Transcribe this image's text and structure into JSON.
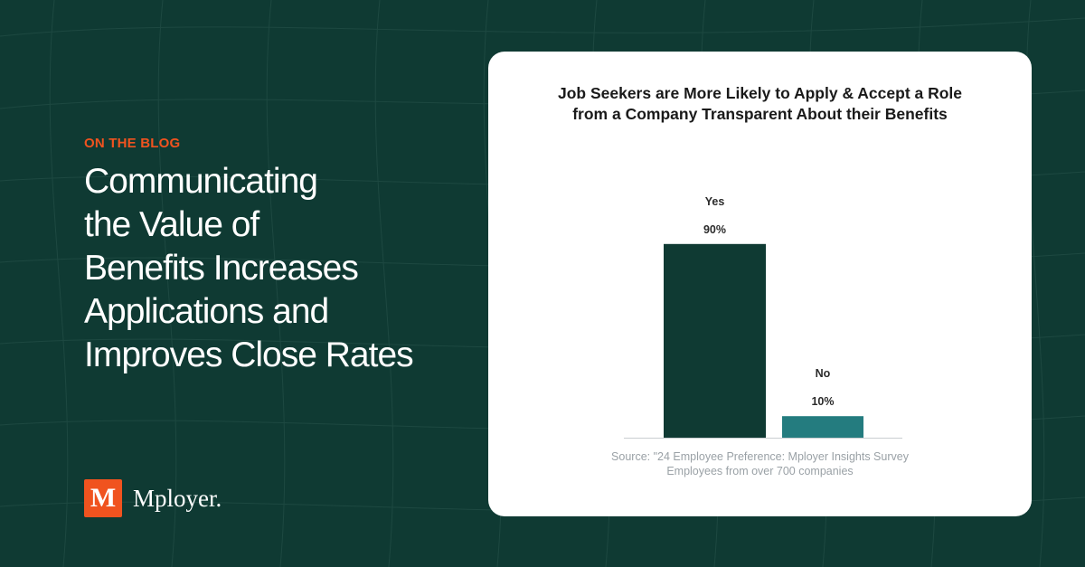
{
  "blog": {
    "eyebrow": "ON THE BLOG",
    "headline_lines": [
      "Communicating",
      "the Value of",
      "Benefits Increases",
      "Applications and",
      "Improves Close Rates"
    ]
  },
  "brand": {
    "logo_letter": "M",
    "name": "Mployer."
  },
  "colors": {
    "background": "#0f3a33",
    "accent": "#f0531f",
    "bar_yes": "#0f3a33",
    "bar_no": "#247c7f"
  },
  "chart_data": {
    "type": "bar",
    "title_lines": [
      "Job Seekers are More Likely to Apply & Accept a Role",
      "from a Company Transparent About their Benefits"
    ],
    "categories": [
      "Yes",
      "No"
    ],
    "values": [
      90,
      10
    ],
    "value_labels": [
      "90%",
      "10%"
    ],
    "ylim": [
      0,
      100
    ],
    "xlabel": "",
    "ylabel": "",
    "grid": false,
    "source_lines": [
      "Source: \"24 Employee Preference: Mployer Insights Survey",
      "Employees from over 700 companies"
    ]
  }
}
